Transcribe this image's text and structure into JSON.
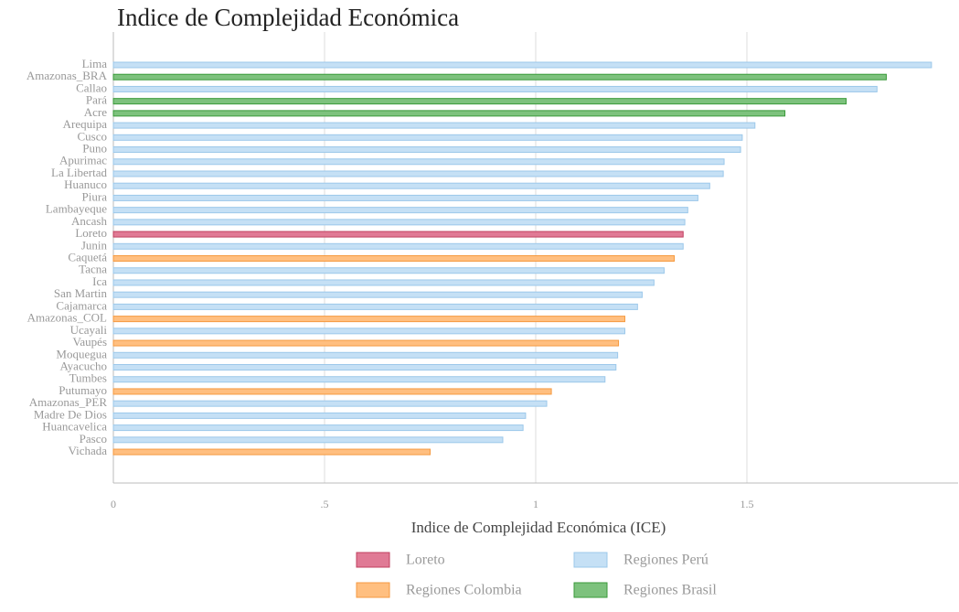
{
  "chart_data": {
    "type": "barh",
    "title": "Indice de Complejidad Económica",
    "xlabel": "Indice de Complejidad Económica (ICE)",
    "categories": [
      "Lima",
      "Amazonas_BRA",
      "Callao",
      "Pará",
      "Acre",
      "Arequipa",
      "Cusco",
      "Puno",
      "Apurimac",
      "La Libertad",
      "Huanuco",
      "Piura",
      "Lambayeque",
      "Ancash",
      "Loreto",
      "Junin",
      "Caquetá",
      "Tacna",
      "Ica",
      "San Martin",
      "Cajamarca",
      "Amazonas_COL",
      "Ucayali",
      "Vaupés",
      "Moquegua",
      "Ayacucho",
      "Tumbes",
      "Putumayo",
      "Amazonas_PER",
      "Madre De Dios",
      "Huancavelica",
      "Pasco",
      "Vichada"
    ],
    "series": [
      {
        "name": "Loreto",
        "color": "#e07a95",
        "stroke": "#c0405f",
        "values": [
          null,
          null,
          null,
          null,
          null,
          null,
          null,
          null,
          null,
          null,
          null,
          null,
          null,
          null,
          1.349,
          null,
          null,
          null,
          null,
          null,
          null,
          null,
          null,
          null,
          null,
          null,
          null,
          null,
          null,
          null,
          null,
          null,
          null
        ]
      },
      {
        "name": "Regiones Perú",
        "color": "#c5e0f5",
        "stroke": "#9cc8ea",
        "values": [
          1.937,
          null,
          1.808,
          null,
          null,
          1.519,
          1.489,
          1.485,
          1.446,
          1.444,
          1.412,
          1.384,
          1.36,
          1.353,
          null,
          1.349,
          null,
          1.304,
          1.28,
          1.252,
          1.241,
          null,
          1.211,
          null,
          1.194,
          1.19,
          1.164,
          null,
          1.026,
          0.976,
          0.97,
          0.922,
          null
        ]
      },
      {
        "name": "Regiones Colombia",
        "color": "#ffbf80",
        "stroke": "#f59a40",
        "values": [
          null,
          null,
          null,
          null,
          null,
          null,
          null,
          null,
          null,
          null,
          null,
          null,
          null,
          null,
          null,
          null,
          1.328,
          null,
          null,
          null,
          null,
          1.211,
          null,
          1.196,
          null,
          null,
          null,
          1.037,
          null,
          null,
          null,
          null,
          0.75
        ]
      },
      {
        "name": "Regiones Brasil",
        "color": "#7dc27d",
        "stroke": "#3a9a3a",
        "values": [
          null,
          1.83,
          null,
          1.735,
          1.59,
          null,
          null,
          null,
          null,
          null,
          null,
          null,
          null,
          null,
          null,
          null,
          null,
          null,
          null,
          null,
          null,
          null,
          null,
          null,
          null,
          null,
          null,
          null,
          null,
          null,
          null,
          null,
          null
        ]
      }
    ],
    "xlim": [
      0,
      2
    ],
    "xticks": [
      0,
      {
        "value": 0.5,
        "label": ".5"
      },
      1,
      1.5
    ],
    "grid": true
  }
}
